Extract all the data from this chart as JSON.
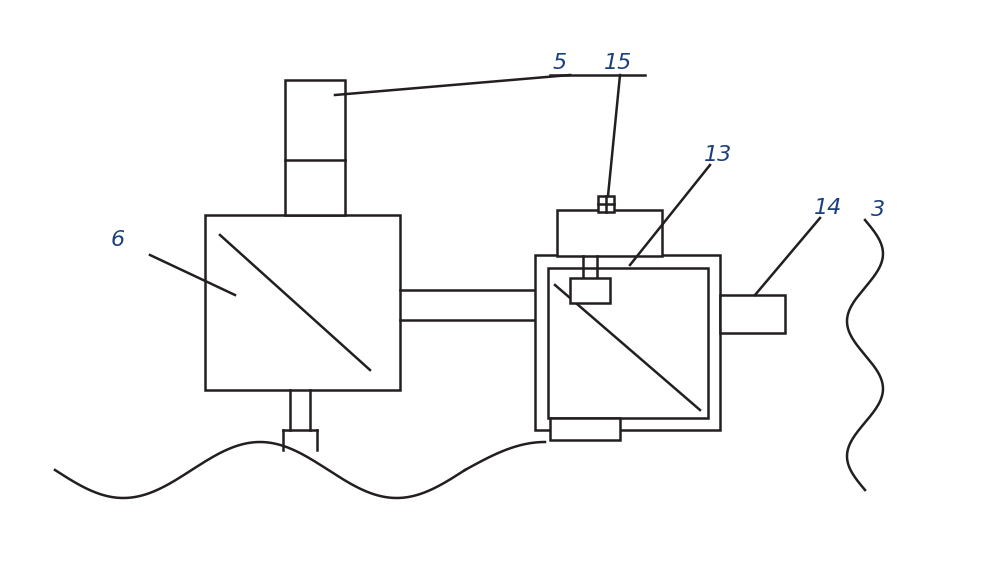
{
  "bg_color": "#ffffff",
  "line_color": "#231f20",
  "label_color": "#1a3f7a",
  "lw": 1.8,
  "figsize": [
    10.0,
    5.79
  ],
  "dpi": 100
}
